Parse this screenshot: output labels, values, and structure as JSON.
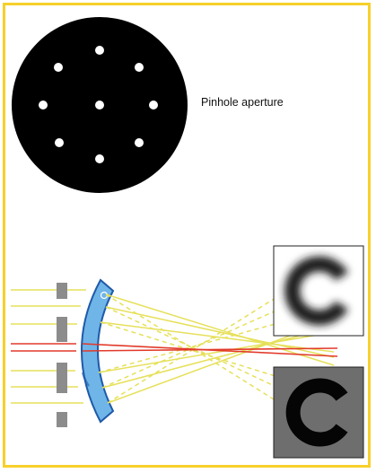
{
  "labels": {
    "pinhole_aperture": "Pinhole aperture"
  },
  "colors": {
    "frame": "#f7d02a",
    "disc": "#000000",
    "hole": "#ffffff",
    "yellow_ray": "#e6e05a",
    "red_ray": "#e23a2a",
    "lens_fill": "#6fb5e8",
    "lens_stroke": "#1f5aa8",
    "aperture_block": "#8c8c8c"
  },
  "icons": {
    "blurred_letter": "blurred-c-optotype",
    "sharp_letter": "sharp-c-optotype"
  }
}
